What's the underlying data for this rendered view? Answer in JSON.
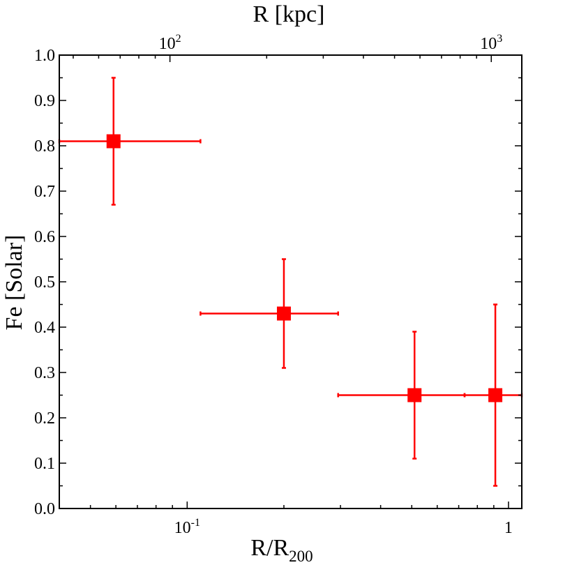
{
  "chart_data": {
    "type": "scatter",
    "title": "",
    "xlabel_main": "R/R",
    "xlabel_sub": "200",
    "xlabel_top": "R [kpc]",
    "ylabel": "Fe [Solar]",
    "x_scale": "log",
    "xlim": [
      0.04,
      1.1
    ],
    "ylim": [
      0.0,
      1.0
    ],
    "top_x_scale": "log",
    "top_xlim": [
      45.25,
      1244.5
    ],
    "y_ticks": [
      "0.0",
      "0.1",
      "0.2",
      "0.3",
      "0.4",
      "0.5",
      "0.6",
      "0.7",
      "0.8",
      "0.9",
      "1.0"
    ],
    "x_ticks": [
      {
        "value": 0.1,
        "base": "10",
        "exp": "-1"
      },
      {
        "value": 1,
        "base": "1",
        "exp": ""
      }
    ],
    "top_x_ticks": [
      {
        "value": 100,
        "base": "10",
        "exp": "2"
      },
      {
        "value": 1000,
        "base": "10",
        "exp": "3"
      }
    ],
    "marker_color": "#ff0000",
    "marker": "square",
    "grid": false,
    "legend": "none",
    "points": [
      {
        "x": 0.059,
        "y": 0.81,
        "x_lo": 0.04,
        "x_hi": 0.11,
        "y_lo": 0.67,
        "y_hi": 0.95
      },
      {
        "x": 0.2,
        "y": 0.43,
        "x_lo": 0.11,
        "x_hi": 0.295,
        "y_lo": 0.31,
        "y_hi": 0.55
      },
      {
        "x": 0.51,
        "y": 0.25,
        "x_lo": 0.295,
        "x_hi": 0.73,
        "y_lo": 0.11,
        "y_hi": 0.39
      },
      {
        "x": 0.91,
        "y": 0.25,
        "x_lo": 0.73,
        "x_hi": 1.1,
        "y_lo": 0.05,
        "y_hi": 0.45
      }
    ]
  }
}
